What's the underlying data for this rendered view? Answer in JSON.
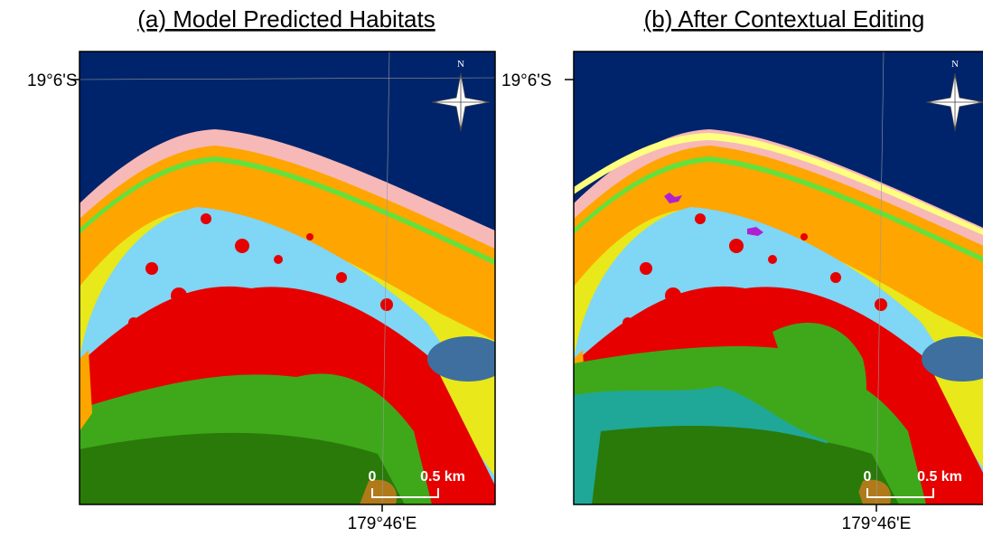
{
  "panels": [
    {
      "title": "(a) Model Predicted Habitats",
      "lat_label": "19°6'S",
      "lon_label": "179°46'E",
      "north": "N",
      "scale_start": "0",
      "scale_end": "0.5 km"
    },
    {
      "title": "(b) After Contextual Editing",
      "lat_label": "19°6'S",
      "lon_label": "179°46'E",
      "north": "N",
      "scale_start": "0",
      "scale_end": "0.5 km"
    }
  ]
}
